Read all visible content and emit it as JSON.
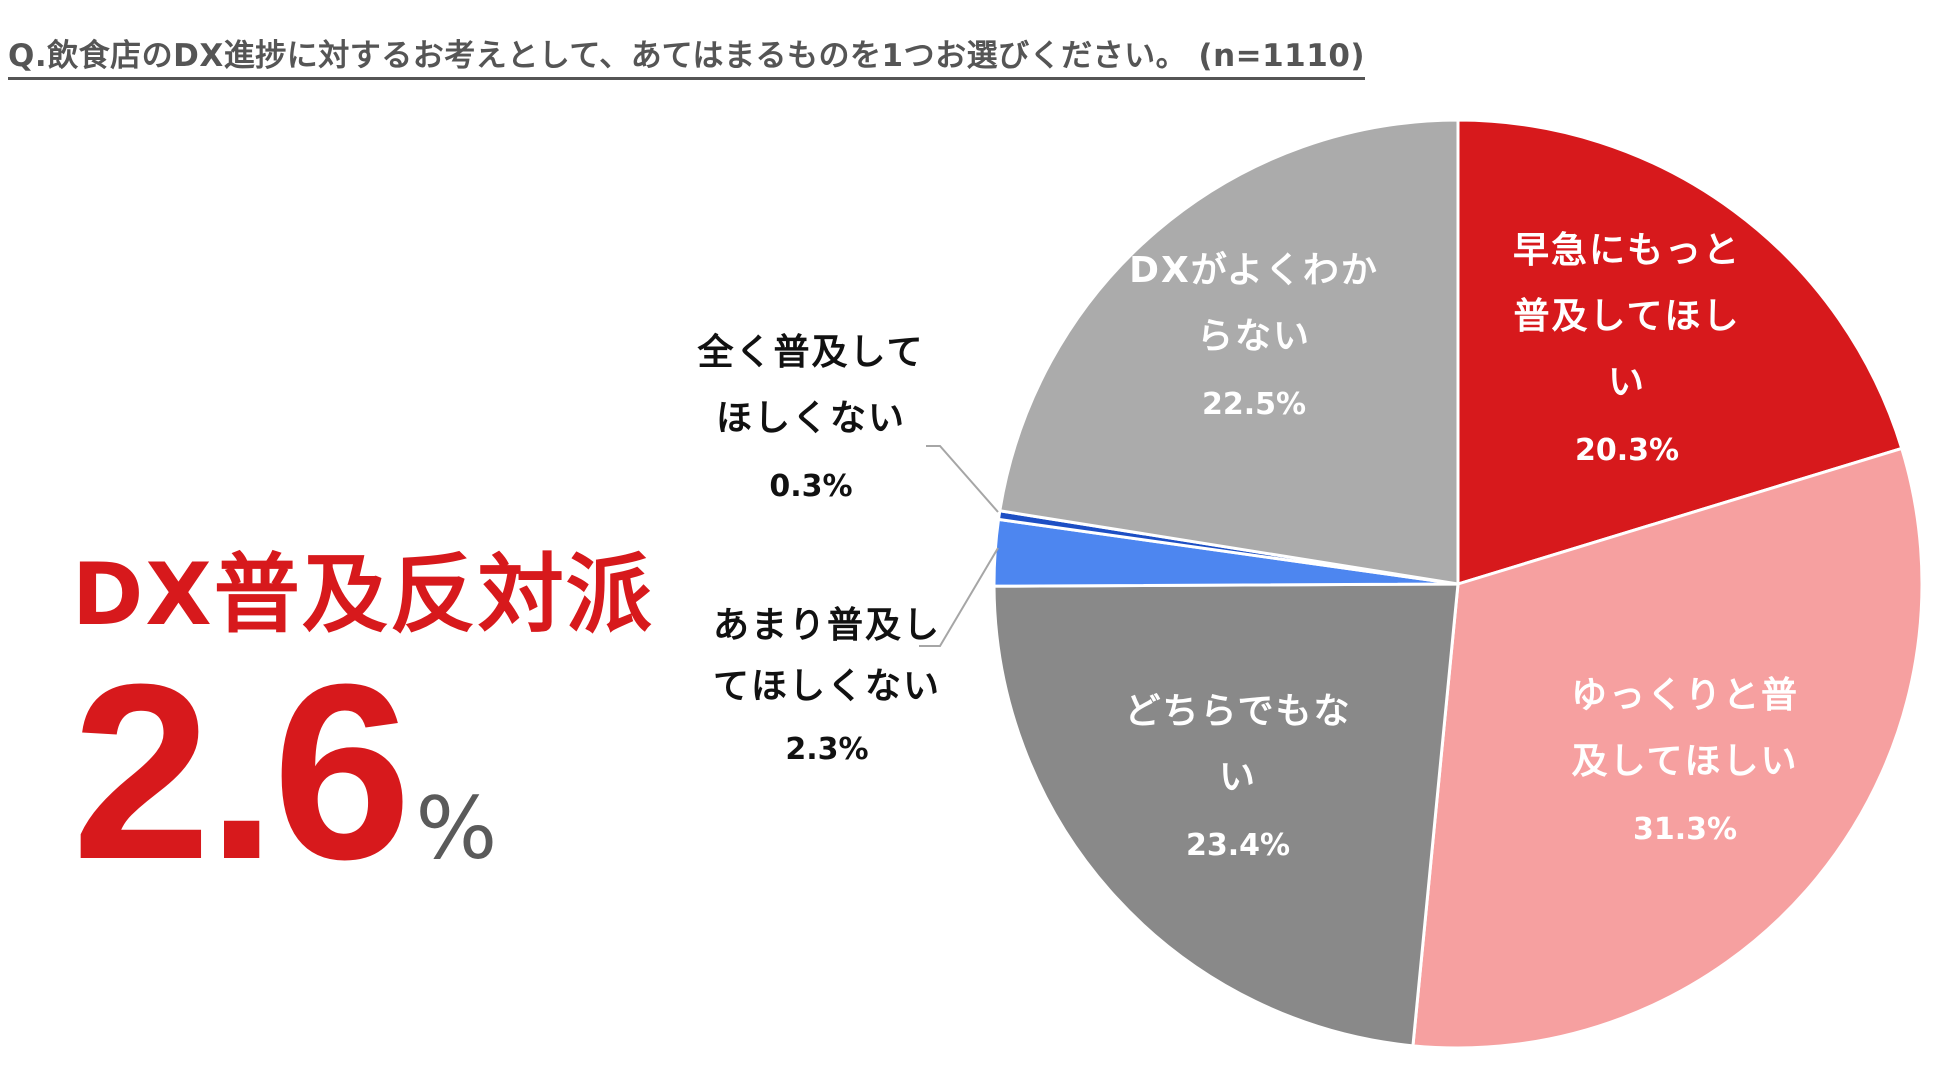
{
  "question": "Q.飲食店のDX進捗に対するお考えとして、あてはまるものを1つお選びください。 (n=1110)",
  "callout": {
    "title": "DX普及反対派",
    "value": "2.6",
    "unit": "%"
  },
  "colors": {
    "red": "#d7191c",
    "pink": "#f6a0a0",
    "dark_gray": "#898989",
    "blue": "#4d86f0",
    "dark_blue": "#1d4fc4",
    "light_gray": "#ababab",
    "callout_red": "#d7191c",
    "text_white": "#ffffff",
    "text_black": "#111111"
  },
  "chart_data": {
    "type": "pie",
    "title": "Q.飲食店のDX進捗に対するお考えとして、あてはまるものを1つお選びください。 (n=1110)",
    "start": "12 o'clock",
    "direction": "clockwise",
    "slices": [
      {
        "name": "早急にもっと普及してほしい",
        "label_lines": [
          "早急にもっと",
          "普及してほし",
          "い"
        ],
        "value": 20.3,
        "pct_text": "20.3%",
        "color": "#d7191c",
        "text_color": "#ffffff",
        "label_position": "inside"
      },
      {
        "name": "ゆっくりと普及してほしい",
        "label_lines": [
          "ゆっくりと普",
          "及してほしい"
        ],
        "value": 31.3,
        "pct_text": "31.3%",
        "color": "#f6a0a0",
        "text_color": "#ffffff",
        "label_position": "inside"
      },
      {
        "name": "どちらでもない",
        "label_lines": [
          "どちらでもな",
          "い"
        ],
        "value": 23.4,
        "pct_text": "23.4%",
        "color": "#898989",
        "text_color": "#ffffff",
        "label_position": "inside"
      },
      {
        "name": "あまり普及してほしくない",
        "label_lines": [
          "あまり普及し",
          "てほしくない"
        ],
        "value": 2.3,
        "pct_text": "2.3%",
        "color": "#4d86f0",
        "text_color": "#111111",
        "label_position": "outside-left"
      },
      {
        "name": "全く普及してほしくない",
        "label_lines": [
          "全く普及して",
          "ほしくない"
        ],
        "value": 0.3,
        "pct_text": "0.3%",
        "color": "#1d4fc4",
        "text_color": "#111111",
        "label_position": "outside-left"
      },
      {
        "name": "DXがよくわからない",
        "label_lines": [
          "DXがよくわか",
          "らない"
        ],
        "value": 22.5,
        "pct_text": "22.5%",
        "color": "#ababab",
        "text_color": "#ffffff",
        "label_position": "inside"
      }
    ]
  }
}
